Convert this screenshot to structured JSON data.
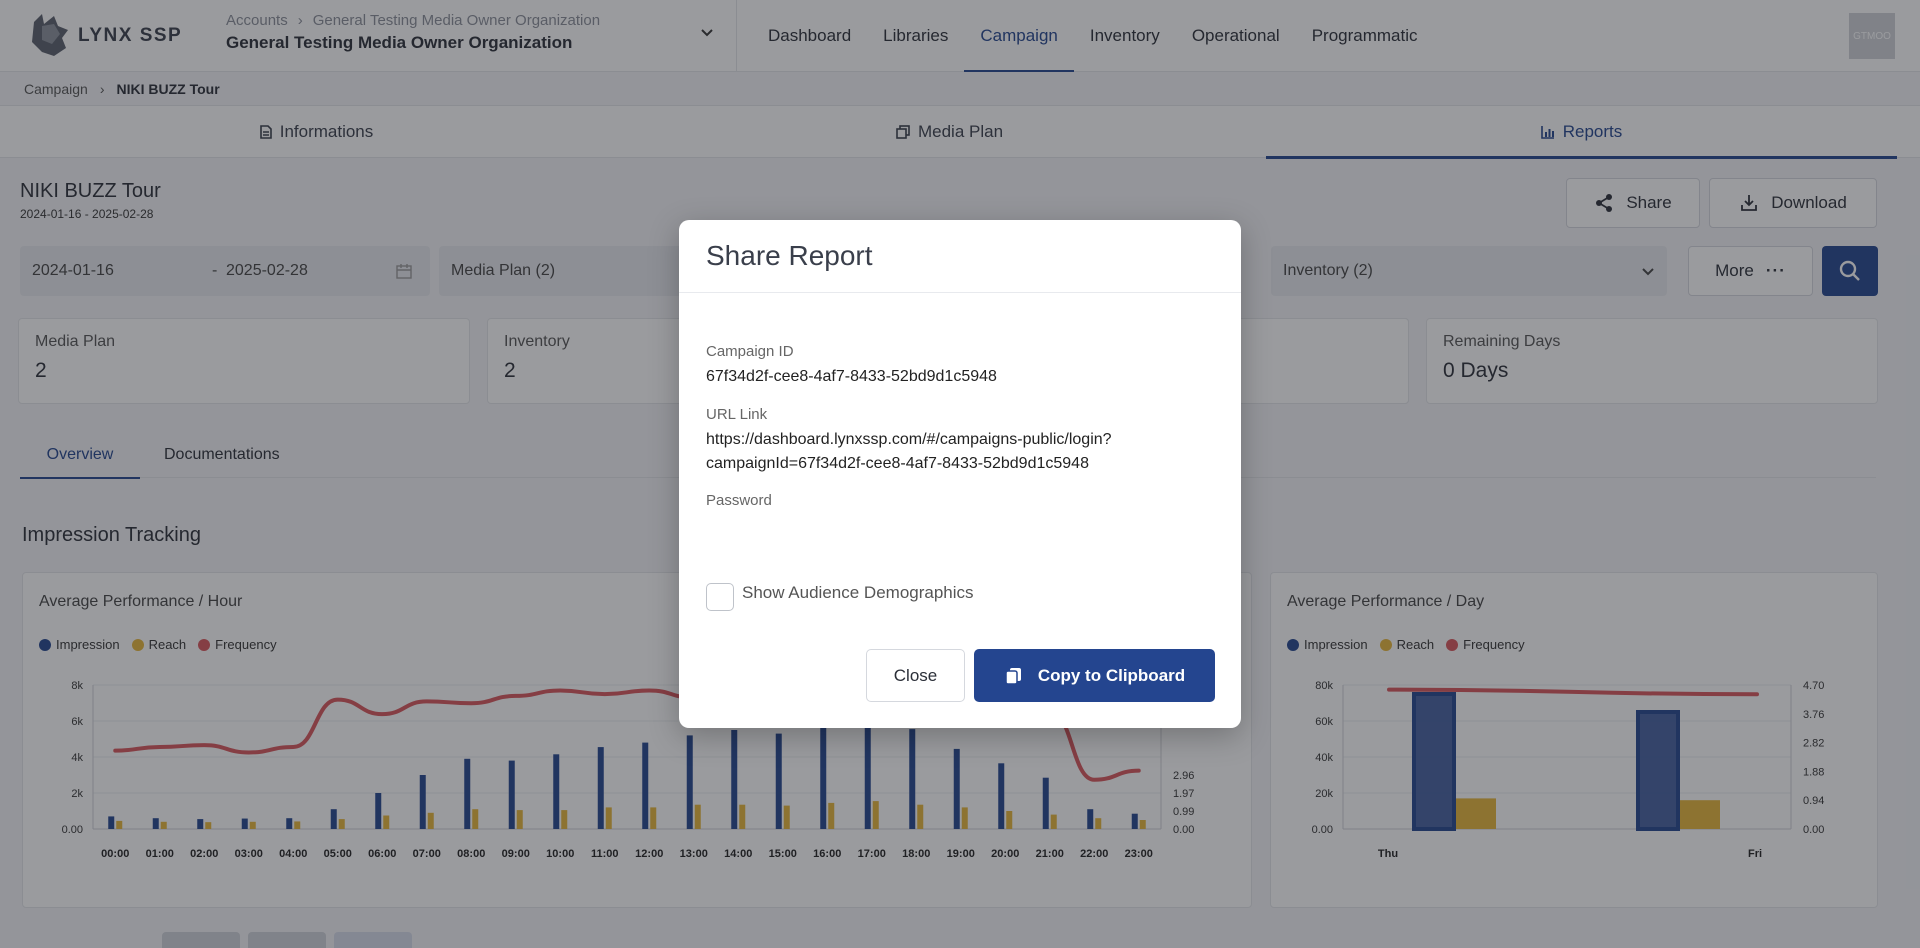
{
  "header": {
    "logo_text": "LYNX SSP",
    "org_breadcrumb": [
      "Accounts",
      "General Testing Media Owner Organization"
    ],
    "org_title": "General Testing Media Owner Organization",
    "nav": [
      "Dashboard",
      "Libraries",
      "Campaign",
      "Inventory",
      "Operational",
      "Programmatic"
    ],
    "active_nav": "Campaign",
    "avatar_text": "GTMOO"
  },
  "breadcrumb": {
    "parent": "Campaign",
    "current": "NIKI BUZZ Tour"
  },
  "subtabs": {
    "informations": "Informations",
    "media_plan": "Media Plan",
    "reports": "Reports"
  },
  "campaign": {
    "title": "NIKI BUZZ Tour",
    "dates": "2024-01-16 - 2025-02-28",
    "share_label": "Share",
    "download_label": "Download"
  },
  "filters": {
    "start_date": "2024-01-16",
    "date_sep": "-",
    "end_date": "2025-02-28",
    "media_plan": "Media Plan (2)",
    "inventory": "Inventory (2)",
    "more_label": "More"
  },
  "stats": {
    "media_plan_label": "Media Plan",
    "media_plan_value": "2",
    "inventory_label": "Inventory",
    "inventory_value": "2",
    "remaining_label": "Remaining Days",
    "remaining_value": "0 Days"
  },
  "overview_tabs": {
    "overview": "Overview",
    "documentations": "Documentations"
  },
  "section_title": "Impression Tracking",
  "legend": {
    "impression": "Impression",
    "reach": "Reach",
    "frequency": "Frequency"
  },
  "colors": {
    "impression": "#24458f",
    "reach": "#e8b73a",
    "frequency": "#d9575b",
    "accent": "#24458f"
  },
  "chart_data": [
    {
      "type": "bar",
      "title": "Average Performance / Hour",
      "categories": [
        "00:00",
        "01:00",
        "02:00",
        "03:00",
        "04:00",
        "05:00",
        "06:00",
        "07:00",
        "08:00",
        "09:00",
        "10:00",
        "11:00",
        "12:00",
        "13:00",
        "14:00",
        "15:00",
        "16:00",
        "17:00",
        "18:00",
        "19:00",
        "20:00",
        "21:00",
        "22:00",
        "23:00"
      ],
      "y_ticks": [
        "0.00",
        "2k",
        "4k",
        "6k",
        "8k"
      ],
      "y2_ticks_visible": [
        "0.00",
        "0.99",
        "1.97",
        "2.96"
      ],
      "ylim": [
        0,
        8000
      ],
      "y2lim": [
        0,
        7.9
      ],
      "series": [
        {
          "name": "Impression",
          "values": [
            700,
            600,
            550,
            580,
            600,
            1100,
            2000,
            3000,
            3900,
            3800,
            4150,
            4550,
            4800,
            5200,
            5500,
            5300,
            5800,
            6100,
            5550,
            4450,
            3650,
            2850,
            1100,
            850
          ]
        },
        {
          "name": "Reach",
          "values": [
            450,
            400,
            380,
            400,
            420,
            550,
            750,
            900,
            1100,
            1050,
            1050,
            1200,
            1200,
            1350,
            1350,
            1300,
            1450,
            1550,
            1350,
            1200,
            1000,
            800,
            600,
            500
          ]
        },
        {
          "name": "Frequency",
          "values": [
            4.3,
            4.5,
            4.6,
            4.2,
            4.5,
            7.1,
            6.3,
            7.0,
            6.9,
            7.3,
            7.6,
            7.4,
            7.6,
            7.2,
            7.0,
            7.0,
            7.1,
            7.1,
            7.0,
            6.9,
            6.8,
            6.5,
            2.7,
            3.2
          ]
        }
      ]
    },
    {
      "type": "bar",
      "title": "Average Performance / Day",
      "categories": [
        "Thu",
        "Fri"
      ],
      "y_ticks": [
        "0.00",
        "20k",
        "40k",
        "60k",
        "80k"
      ],
      "y2_ticks": [
        "0.00",
        "0.94",
        "1.88",
        "2.82",
        "3.76",
        "4.70"
      ],
      "ylim": [
        0,
        80000
      ],
      "y2lim": [
        0,
        4.7
      ],
      "series": [
        {
          "name": "Impression",
          "values": [
            75000,
            65000
          ]
        },
        {
          "name": "Reach",
          "values": [
            17000,
            16000
          ]
        },
        {
          "name": "Frequency",
          "values": [
            4.55,
            4.4
          ]
        }
      ]
    }
  ],
  "modal": {
    "title": "Share Report",
    "campaign_id_label": "Campaign ID",
    "campaign_id": "67f34d2f-cee8-4af7-8433-52bd9d1c5948",
    "url_label": "URL Link",
    "url_line1": "https://dashboard.lynxssp.com/#/campaigns-public/login?",
    "url_line2": "campaignId=67f34d2f-cee8-4af7-8433-52bd9d1c5948",
    "password_label": "Password",
    "password_value": "",
    "show_demographics_label": "Show Audience Demographics",
    "show_demographics_checked": false,
    "close_label": "Close",
    "copy_label": "Copy to Clipboard"
  }
}
